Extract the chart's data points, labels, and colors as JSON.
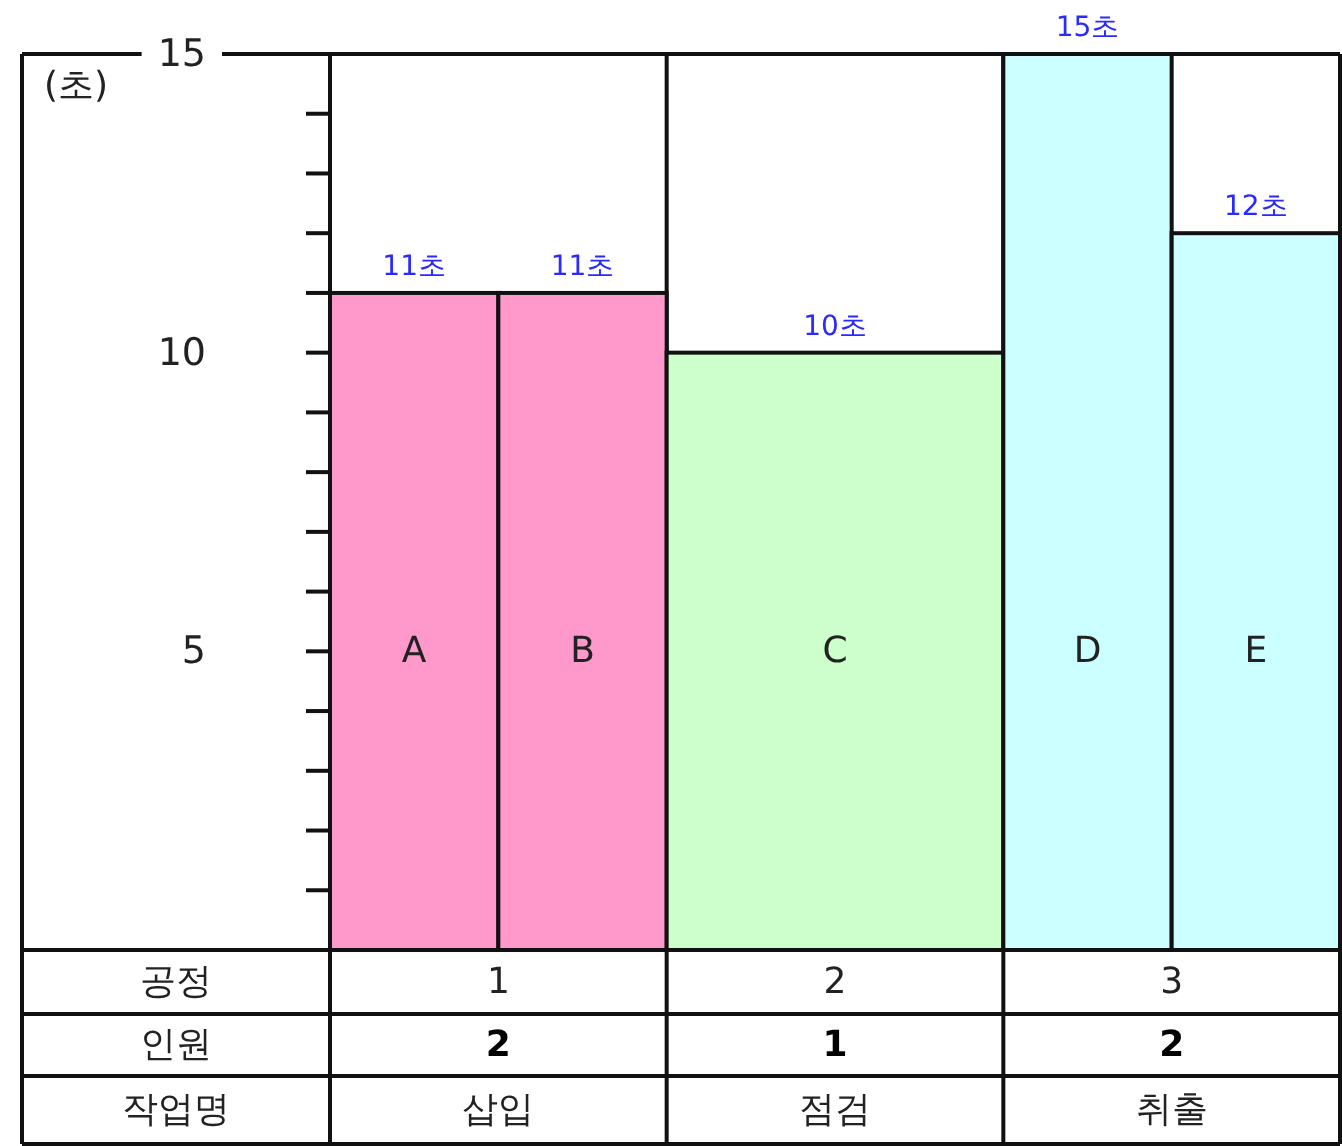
{
  "chart_data": {
    "type": "bar",
    "ylabel": "(초)",
    "categories": [
      "A",
      "B",
      "C",
      "D",
      "E"
    ],
    "values": [
      11,
      11,
      10,
      15,
      12
    ],
    "colors": [
      "#ff99cc",
      "#ff99cc",
      "#ccffcc",
      "#ccffff",
      "#ccffff"
    ],
    "value_labels": [
      "11초",
      "11초",
      "10초",
      "15초",
      "12초"
    ],
    "ylim": [
      0,
      15
    ],
    "yticks": [
      {
        "value": 1,
        "label": null
      },
      {
        "value": 2,
        "label": null
      },
      {
        "value": 3,
        "label": null
      },
      {
        "value": 4,
        "label": null
      },
      5,
      {
        "value": 6,
        "label": null
      },
      {
        "value": 7,
        "label": null
      },
      {
        "value": 8,
        "label": null
      },
      {
        "value": 9,
        "label": null
      },
      10,
      {
        "value": 11,
        "label": null
      },
      {
        "value": 12,
        "label": null
      },
      {
        "value": 13,
        "label": null
      },
      {
        "value": 14,
        "label": null
      },
      15
    ],
    "annotations": [
      "공정",
      "1",
      "2",
      "3",
      "인원",
      "2",
      "1",
      "2",
      "작업명",
      "삽입",
      "점검",
      "취출"
    ]
  }
}
